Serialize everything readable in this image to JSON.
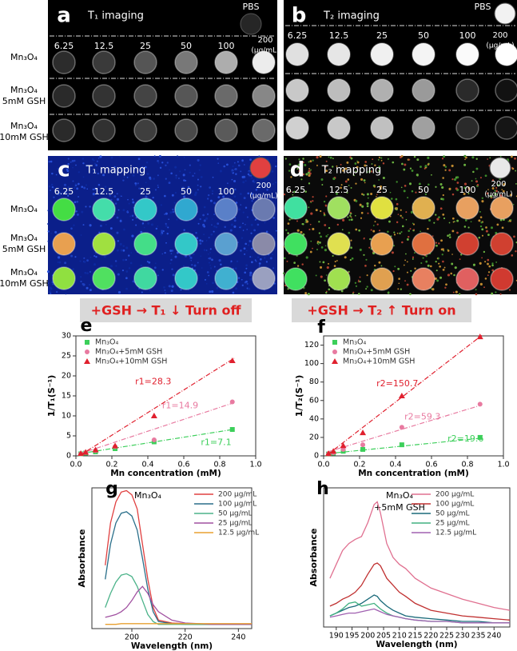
{
  "figure": {
    "concentrations": [
      "6.25",
      "12.5",
      "25",
      "50",
      "100",
      "200"
    ],
    "unit": "(μg/mL)",
    "rows": [
      [
        "Mn₃O₄"
      ],
      [
        "Mn₃O₄",
        "5mM GSH"
      ],
      [
        "Mn₃O₄",
        "10mM GSH"
      ]
    ],
    "pbs": "PBS",
    "panels": [
      {
        "letter": "a",
        "title": "T₁ imaging",
        "background": "#000000",
        "show_rows": true,
        "show_pbs_label": true,
        "pbs_color": "#262626",
        "wells": [
          [
            "#2c2c2c",
            "#3a3a3a",
            "#555555",
            "#787878",
            "#adadad",
            "#ececec"
          ],
          [
            "#2a2a2a",
            "#333333",
            "#444444",
            "#565656",
            "#6a6a6a",
            "#878787"
          ],
          [
            "#2a2a2a",
            "#313131",
            "#3e3e3e",
            "#4a4a4a",
            "#5a5a5a",
            "#6a6a6a"
          ]
        ]
      },
      {
        "letter": "b",
        "title": "T₂ imaging",
        "background": "#000000",
        "show_rows": false,
        "show_pbs_label": true,
        "pbs_color": "#f2f2f2",
        "wells": [
          [
            "#e0e0e0",
            "#e6e6e6",
            "#f0f0f0",
            "#f4f4f4",
            "#fafafa",
            "#ffffff"
          ],
          [
            "#c8c8c8",
            "#bdbdbd",
            "#b0b0b0",
            "#9a9a9a",
            "#2a2a2a",
            "#121212"
          ],
          [
            "#d0d0d0",
            "#c8c8c8",
            "#c0c0c0",
            "#a0a0a0",
            "#2a2a2a",
            "#151515"
          ]
        ]
      },
      {
        "letter": "c",
        "title": "T₁ mapping",
        "background": "#0b1f8a",
        "show_rows": true,
        "show_pbs_label": false,
        "pbs_color": "#e04040",
        "wells": [
          [
            "#44dd44",
            "#44ddaa",
            "#33c8c8",
            "#30a8d0",
            "#5a80c8",
            "#6a7ab0"
          ],
          [
            "#e8a050",
            "#a0e040",
            "#44dd88",
            "#33c8c8",
            "#5aa0d0",
            "#8a8aa8"
          ],
          [
            "#90e040",
            "#50e060",
            "#40d8a0",
            "#33c8c8",
            "#40b0d0",
            "#9aa0c0"
          ]
        ]
      },
      {
        "letter": "d",
        "title": "T₂ mapping",
        "background": "#0a0a0a",
        "show_rows": false,
        "show_pbs_label": false,
        "pbs_color": "#e8e8e8",
        "wells": [
          [
            "#40e0a0",
            "#a0e060",
            "#e0e040",
            "#e0b050",
            "#e8a060",
            "#e8a060"
          ],
          [
            "#40e060",
            "#e0e050",
            "#e8a050",
            "#e07040",
            "#d04030",
            "#d04030"
          ],
          [
            "#40e060",
            "#a0e050",
            "#e0a050",
            "#e88060",
            "#e06060",
            "#d03a30"
          ]
        ]
      }
    ],
    "banners": [
      "+GSH → T₁ ↓ Turn off",
      "+GSH → T₂ ↑ Turn on"
    ],
    "banner_color": "#e02020",
    "banner_background": "#d9d9d9"
  },
  "chart_data": [
    {
      "type": "scatter",
      "letter": "e",
      "xlabel": "Mn concentration (mM)",
      "ylabel": "1/T₁(S⁻¹)",
      "xlim": [
        0,
        1
      ],
      "xticks": [
        {
          "value": 0,
          "label": "0.0"
        },
        {
          "value": 0.2,
          "label": "0.2"
        },
        {
          "value": 0.4,
          "label": "0.4"
        },
        {
          "value": 0.6,
          "label": "0.6"
        },
        {
          "value": 0.8,
          "label": "0.8"
        },
        {
          "value": 1,
          "label": "1.0"
        }
      ],
      "ylim": [
        0,
        30
      ],
      "yticks": [
        0,
        5,
        10,
        15,
        20,
        25,
        30
      ],
      "x": [
        0.027,
        0.054,
        0.109,
        0.218,
        0.435,
        0.87
      ],
      "series": [
        {
          "name": "Mn₃O₄",
          "color": "#3ccf5a",
          "marker": "square",
          "values": [
            0.5,
            0.7,
            1.0,
            1.8,
            3.5,
            6.6
          ],
          "fit": {
            "slope": 7.1,
            "intercept": 0.4
          },
          "fit_label": "r1=7.1"
        },
        {
          "name": "Mn₃O₄+5mM GSH",
          "color": "#e87aa0",
          "marker": "circle",
          "values": [
            0.5,
            0.8,
            1.3,
            2.3,
            4.0,
            13.5
          ],
          "fit": {
            "slope": 14.9,
            "intercept": 0.2
          },
          "fit_label": "r1=14.9"
        },
        {
          "name": "Mn₃O₄+10mM GSH",
          "color": "#e0202e",
          "marker": "triangle",
          "values": [
            0.6,
            0.9,
            1.5,
            2.5,
            10,
            23.8
          ],
          "fit": {
            "slope": 28.3,
            "intercept": -0.5
          },
          "fit_label": "r1=28.3"
        }
      ]
    },
    {
      "type": "scatter",
      "letter": "f",
      "xlabel": "Mn concentration (mM)",
      "ylabel": "1/T₂(S⁻¹)",
      "xlim": [
        0,
        1
      ],
      "xticks": [
        {
          "value": 0,
          "label": "0.0"
        },
        {
          "value": 0.2,
          "label": "0.2"
        },
        {
          "value": 0.4,
          "label": "0.4"
        },
        {
          "value": 0.6,
          "label": "0.6"
        },
        {
          "value": 0.8,
          "label": "0.8"
        },
        {
          "value": 1,
          "label": "1.0"
        }
      ],
      "ylim": [
        0,
        130
      ],
      "yticks": [
        0,
        20,
        40,
        60,
        80,
        100,
        120
      ],
      "x": [
        0.027,
        0.054,
        0.109,
        0.218,
        0.435,
        0.87
      ],
      "series": [
        {
          "name": "Mn₃O₄",
          "color": "#3ccf5a",
          "marker": "square",
          "values": [
            2,
            3,
            5,
            7,
            12,
            20
          ],
          "fit": {
            "slope": 19.6,
            "intercept": 2
          },
          "fit_label": "r2=19.6"
        },
        {
          "name": "Mn₃O₄+5mM GSH",
          "color": "#e87aa0",
          "marker": "circle",
          "values": [
            2,
            3.5,
            7,
            12,
            31,
            56
          ],
          "fit": {
            "slope": 59.3,
            "intercept": 3
          },
          "fit_label": "r2=59.3"
        },
        {
          "name": "Mn₃O₄+10mM GSH",
          "color": "#e0202e",
          "marker": "triangle",
          "values": [
            2.5,
            5,
            11,
            25,
            65,
            129
          ],
          "fit": {
            "slope": 150.7,
            "intercept": -2
          },
          "fit_label": "r2=150.7"
        }
      ]
    },
    {
      "type": "line",
      "letter": "g",
      "title": [
        "Mn₃O₄"
      ],
      "xlabel": "Wavelength (nm)",
      "ylabel": "Absorbance",
      "xlim": [
        185,
        245
      ],
      "xticks": [
        200,
        220,
        240
      ],
      "ylim": [
        0,
        1
      ],
      "x": [
        190,
        192,
        194,
        196,
        198,
        200,
        202,
        204,
        206,
        208,
        210,
        215,
        220,
        225,
        230,
        235,
        240,
        245
      ],
      "series": [
        {
          "name": "200 μg/mL",
          "color": "#e04040",
          "values": [
            0.45,
            0.75,
            0.9,
            0.97,
            0.98,
            0.95,
            0.85,
            0.6,
            0.35,
            0.15,
            0.06,
            0.04,
            0.035,
            0.03,
            0.03,
            0.03,
            0.03,
            0.03
          ]
        },
        {
          "name": "100 μg/mL",
          "color": "#2a6f8a",
          "values": [
            0.35,
            0.6,
            0.75,
            0.82,
            0.83,
            0.8,
            0.7,
            0.5,
            0.28,
            0.12,
            0.05,
            0.035,
            0.03,
            0.03,
            0.03,
            0.03,
            0.03,
            0.03
          ]
        },
        {
          "name": "50 μg/mL",
          "color": "#4cb38a",
          "values": [
            0.15,
            0.25,
            0.33,
            0.38,
            0.39,
            0.37,
            0.3,
            0.2,
            0.1,
            0.05,
            0.03,
            0.03,
            0.03,
            0.03,
            0.03,
            0.03,
            0.03,
            0.03
          ]
        },
        {
          "name": "25 μg/mL",
          "color": "#a050a0",
          "values": [
            0.08,
            0.09,
            0.1,
            0.12,
            0.15,
            0.2,
            0.26,
            0.3,
            0.25,
            0.17,
            0.12,
            0.06,
            0.04,
            0.035,
            0.03,
            0.03,
            0.03,
            0.03
          ]
        },
        {
          "name": "12.5 μg/mL",
          "color": "#e8a030",
          "values": [
            0.03,
            0.03,
            0.03,
            0.035,
            0.035,
            0.035,
            0.035,
            0.035,
            0.035,
            0.035,
            0.035,
            0.035,
            0.035,
            0.035,
            0.035,
            0.035,
            0.035,
            0.035
          ]
        }
      ]
    },
    {
      "type": "line",
      "letter": "h",
      "title": [
        "Mn₃O₄",
        "+5mM GSH"
      ],
      "xlabel": "Wavelength (nm)",
      "ylabel": "Absorbance",
      "xlim": [
        186,
        245
      ],
      "xticks": [
        190,
        195,
        200,
        205,
        210,
        215,
        220,
        225,
        230,
        235,
        240
      ],
      "ylim": [
        0,
        1
      ],
      "x": [
        188,
        190,
        192,
        194,
        196,
        198,
        200,
        202,
        203,
        204,
        206,
        208,
        210,
        212,
        215,
        220,
        225,
        230,
        235,
        240,
        245
      ],
      "series": [
        {
          "name": "200 μg/mL",
          "color": "#e07090",
          "values": [
            0.35,
            0.45,
            0.55,
            0.6,
            0.63,
            0.65,
            0.75,
            0.88,
            0.9,
            0.82,
            0.6,
            0.5,
            0.45,
            0.42,
            0.35,
            0.28,
            0.24,
            0.2,
            0.17,
            0.14,
            0.12
          ]
        },
        {
          "name": "100 μg/mL",
          "color": "#c03030",
          "values": [
            0.15,
            0.17,
            0.2,
            0.22,
            0.25,
            0.3,
            0.38,
            0.45,
            0.46,
            0.44,
            0.35,
            0.3,
            0.25,
            0.22,
            0.17,
            0.12,
            0.1,
            0.08,
            0.07,
            0.06,
            0.05
          ]
        },
        {
          "name": "50 μg/mL",
          "color": "#1a6a7a",
          "values": [
            0.08,
            0.1,
            0.12,
            0.14,
            0.15,
            0.17,
            0.2,
            0.23,
            0.22,
            0.19,
            0.15,
            0.12,
            0.1,
            0.08,
            0.07,
            0.06,
            0.05,
            0.04,
            0.04,
            0.03,
            0.03
          ]
        },
        {
          "name": "25 μg/mL",
          "color": "#40b080",
          "values": [
            0.08,
            0.1,
            0.13,
            0.17,
            0.18,
            0.15,
            0.16,
            0.17,
            0.15,
            0.13,
            0.1,
            0.08,
            0.07,
            0.06,
            0.05,
            0.04,
            0.04,
            0.03,
            0.03,
            0.03,
            0.03
          ]
        },
        {
          "name": "12.5 μg/mL",
          "color": "#a060b0",
          "values": [
            0.07,
            0.08,
            0.09,
            0.1,
            0.1,
            0.11,
            0.12,
            0.13,
            0.12,
            0.11,
            0.09,
            0.08,
            0.07,
            0.06,
            0.05,
            0.04,
            0.04,
            0.03,
            0.03,
            0.03,
            0.03
          ]
        }
      ]
    }
  ]
}
